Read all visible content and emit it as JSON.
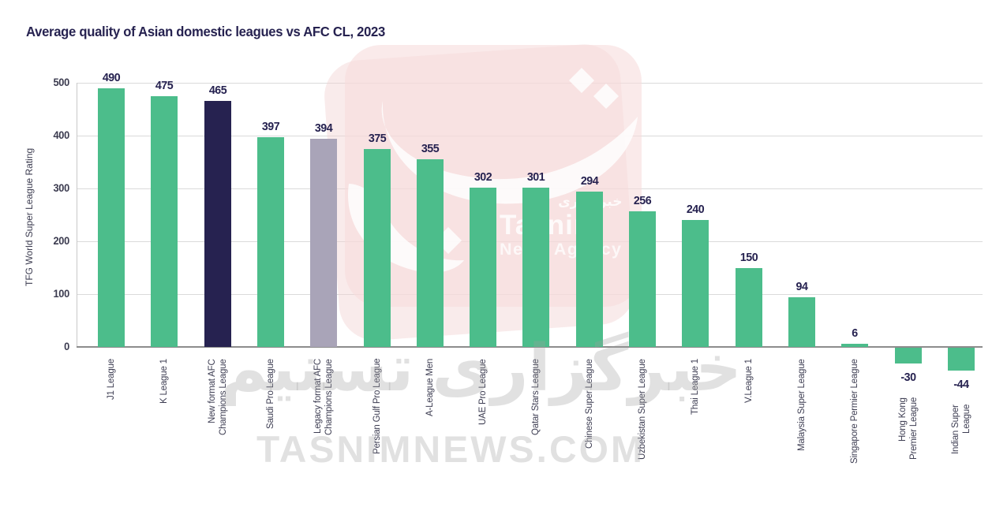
{
  "title": "Average quality of Asian domestic leagues vs AFC CL, 2023",
  "chart_data": {
    "type": "bar",
    "title": "Average quality of Asian domestic leagues vs AFC CL, 2023",
    "xlabel": "",
    "ylabel": "TFG World Super League Rating",
    "yticks": [
      0,
      100,
      200,
      300,
      400,
      500
    ],
    "ylim": [
      -60,
      500
    ],
    "grid": "horizontal",
    "legend": "none",
    "categories": [
      "J1 League",
      "K League 1",
      "New format AFC\nChampions League",
      "Saudi Pro League",
      "Legacy format AFC\nChampions League",
      "Persian Gulf Pro League",
      "A-League Men",
      "UAE Pro League",
      "Qatar Stars League",
      "Chinese Super League",
      "Uzbekistan Super League",
      "Thai League 1",
      "V.League 1",
      "Malaysia Super League",
      "Singapore Permier League",
      "Hong Kong\nPremier League",
      "Indian Super\nLeague"
    ],
    "values": [
      490,
      475,
      465,
      397,
      394,
      375,
      355,
      302,
      301,
      294,
      256,
      240,
      150,
      94,
      6,
      -30,
      -44
    ],
    "bar_color_roles": [
      "green",
      "green",
      "navy",
      "green",
      "gray",
      "green",
      "green",
      "green",
      "green",
      "green",
      "green",
      "green",
      "green",
      "green",
      "green",
      "green",
      "green"
    ],
    "colors": {
      "green": "#4cbd8b",
      "navy": "#262250",
      "gray": "#a9a4b8",
      "value_label": "#262250",
      "axis_label": "#3d3d52",
      "gridline": "#dadada",
      "baseline": "#8c8c8c"
    }
  },
  "watermark": {
    "brand_arabic": "خبرگزاری",
    "brand_name": "Tasnim",
    "brand_agency": "News Agency",
    "bottom_arabic": "خبرگزاری تسنیم",
    "bottom_url": "TASNIMNEWS.COM",
    "panel_color": "#f6dcdc"
  }
}
